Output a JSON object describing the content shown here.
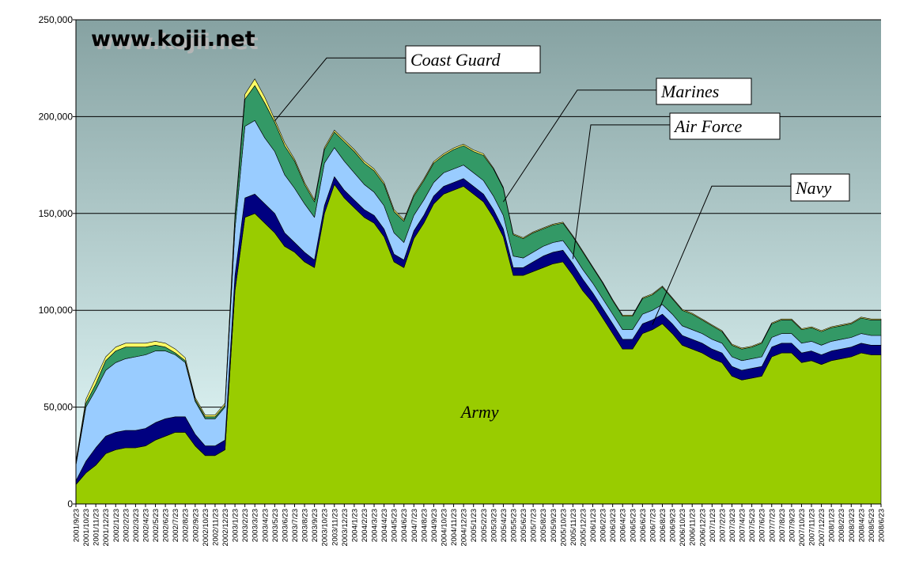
{
  "watermark": "www.kojii.net",
  "chart_data": {
    "type": "area",
    "stacked": true,
    "ylim": [
      0,
      250000
    ],
    "yticks": [
      0,
      50000,
      100000,
      150000,
      200000,
      250000
    ],
    "ytick_labels": [
      "0",
      "50,000",
      "100,000",
      "150,000",
      "200,000",
      "250,000"
    ],
    "grid": "horizontal",
    "x_labels": [
      "2001/9/23",
      "2001/10/23",
      "2001/11/23",
      "2001/12/23",
      "2002/1/23",
      "2002/2/23",
      "2002/3/23",
      "2002/4/23",
      "2002/5/23",
      "2002/6/23",
      "2002/7/23",
      "2002/8/23",
      "2002/9/23",
      "2002/10/23",
      "2002/11/23",
      "2002/12/23",
      "2003/1/23",
      "2003/2/23",
      "2003/3/23",
      "2003/4/23",
      "2003/5/23",
      "2003/6/23",
      "2003/7/23",
      "2003/8/23",
      "2003/9/23",
      "2003/10/23",
      "2003/11/23",
      "2003/12/23",
      "2004/1/23",
      "2004/2/23",
      "2004/3/23",
      "2004/4/23",
      "2004/5/23",
      "2004/6/23",
      "2004/7/23",
      "2004/8/23",
      "2004/9/23",
      "2004/10/23",
      "2004/11/23",
      "2004/12/23",
      "2005/1/23",
      "2005/2/23",
      "2005/3/23",
      "2005/4/23",
      "2005/5/23",
      "2005/6/23",
      "2005/7/23",
      "2005/8/23",
      "2005/9/23",
      "2005/10/23",
      "2005/11/23",
      "2005/12/23",
      "2006/1/23",
      "2006/2/23",
      "2006/3/23",
      "2006/4/23",
      "2006/5/23",
      "2006/6/23",
      "2006/7/23",
      "2006/8/23",
      "2006/9/23",
      "2006/10/23",
      "2006/11/23",
      "2006/12/23",
      "2007/1/23",
      "2007/2/23",
      "2007/3/23",
      "2007/4/23",
      "2007/5/23",
      "2007/6/23",
      "2007/7/23",
      "2007/8/23",
      "2007/9/23",
      "2007/10/23",
      "2007/11/23",
      "2007/12/23",
      "2008/1/23",
      "2008/2/23",
      "2008/3/23",
      "2008/4/23",
      "2008/5/23",
      "2008/6/23"
    ],
    "x": [
      "2001/9/23",
      "2001/10/23",
      "2001/11/23",
      "2001/12/23",
      "2002/1/23",
      "2002/2/23",
      "2002/3/23",
      "2002/4/23",
      "2002/5/23",
      "2002/6/23",
      "2002/7/23",
      "2002/8/23",
      "2002/9/23",
      "2002/10/23",
      "2002/11/23",
      "2002/12/23",
      "2003/1/23",
      "2003/2/23",
      "2003/3/23",
      "2003/4/23",
      "2003/5/23",
      "2003/6/23",
      "2003/7/23",
      "2003/8/23",
      "2003/9/23",
      "2003/10/23",
      "2003/11/23",
      "2003/12/23",
      "2004/1/23",
      "2004/2/23",
      "2004/3/23",
      "2004/4/23",
      "2004/5/23",
      "2004/6/23",
      "2004/7/23",
      "2004/8/23",
      "2004/9/23",
      "2004/10/23",
      "2004/11/23",
      "2004/12/23",
      "2005/1/23",
      "2005/2/23",
      "2005/3/23",
      "2005/4/23",
      "2005/5/23",
      "2005/6/23",
      "2005/7/23",
      "2005/8/23",
      "2005/9/23",
      "2005/10/23",
      "2005/11/23",
      "2005/12/23",
      "2006/1/23",
      "2006/2/23",
      "2006/3/23",
      "2006/4/23",
      "2006/5/23",
      "2006/6/23",
      "2006/7/23",
      "2006/8/23",
      "2006/9/23",
      "2006/10/23",
      "2006/11/23",
      "2006/12/23",
      "2007/1/23",
      "2007/2/23",
      "2007/3/23",
      "2007/4/23",
      "2007/5/23",
      "2007/6/23",
      "2007/7/23",
      "2007/8/23",
      "2007/9/23",
      "2007/10/23",
      "2007/11/23",
      "2007/12/23",
      "2008/1/23",
      "2008/2/23",
      "2008/3/23",
      "2008/4/23",
      "2008/5/23",
      "2008/6/23"
    ],
    "series": [
      {
        "name": "Army",
        "color": "#99cc00",
        "values": [
          10000,
          16000,
          20000,
          26000,
          28000,
          29000,
          29000,
          30000,
          33000,
          35000,
          37000,
          37000,
          30000,
          25000,
          25000,
          28000,
          110000,
          148000,
          150000,
          145000,
          140000,
          133000,
          130000,
          125000,
          122000,
          150000,
          165000,
          158000,
          153000,
          148000,
          145000,
          138000,
          125000,
          122000,
          137000,
          145000,
          155000,
          160000,
          162000,
          164000,
          160000,
          156000,
          148000,
          138000,
          118000,
          118000,
          120000,
          122000,
          124000,
          125000,
          118000,
          110000,
          104000,
          96000,
          88000,
          80000,
          80000,
          88000,
          90000,
          93000,
          88000,
          82000,
          80000,
          78000,
          75000,
          73000,
          66000,
          64000,
          65000,
          66000,
          76000,
          78000,
          78000,
          73000,
          74000,
          72000,
          74000,
          75000,
          76000,
          78000,
          77000,
          77000
        ]
      },
      {
        "name": "Navy",
        "color": "#000080",
        "values": [
          2000,
          6000,
          9000,
          9000,
          9000,
          9000,
          9000,
          9000,
          9000,
          9000,
          8000,
          8000,
          6000,
          5000,
          5000,
          5000,
          8000,
          10000,
          10000,
          10000,
          10000,
          7000,
          5000,
          5000,
          4000,
          4000,
          4000,
          4000,
          4000,
          4000,
          4000,
          4000,
          4000,
          4000,
          4000,
          4000,
          4000,
          4000,
          4000,
          4000,
          4000,
          4000,
          4000,
          4000,
          4000,
          4000,
          5000,
          6000,
          6000,
          6000,
          6000,
          6000,
          5000,
          5000,
          5000,
          5000,
          5000,
          5000,
          5000,
          5000,
          5000,
          5000,
          5000,
          5000,
          5000,
          5000,
          5000,
          5000,
          5000,
          5000,
          5000,
          5000,
          5000,
          5000,
          5000,
          5000,
          5000,
          5000,
          5000,
          5000,
          5000,
          5000
        ]
      },
      {
        "name": "Air Force",
        "color": "#99ccff",
        "values": [
          8000,
          28000,
          30000,
          34000,
          36000,
          37000,
          38000,
          38000,
          37000,
          35000,
          32000,
          28000,
          17000,
          14000,
          14000,
          17000,
          24000,
          37000,
          38000,
          34000,
          32000,
          30000,
          28000,
          25000,
          22000,
          22000,
          15000,
          15000,
          14000,
          13000,
          12000,
          12000,
          11000,
          9000,
          8000,
          8000,
          7000,
          7000,
          7000,
          7000,
          7000,
          7000,
          7000,
          7000,
          6000,
          5000,
          5000,
          5000,
          5000,
          5000,
          5000,
          5000,
          5000,
          5000,
          5000,
          5000,
          5000,
          5000,
          5000,
          5000,
          5000,
          5000,
          5000,
          5000,
          5000,
          5000,
          5000,
          5000,
          5000,
          5000,
          5000,
          5000,
          5000,
          5000,
          5000,
          5000,
          5000,
          5000,
          5000,
          5000,
          5000,
          5000
        ]
      },
      {
        "name": "Marines",
        "color": "#339966",
        "values": [
          1000,
          2000,
          3000,
          5000,
          6000,
          6000,
          5000,
          4000,
          3000,
          2000,
          1000,
          1000,
          1000,
          1000,
          1000,
          1000,
          6000,
          14000,
          18000,
          18000,
          15000,
          15000,
          14000,
          10000,
          8000,
          7000,
          8000,
          10000,
          11000,
          11000,
          11000,
          11000,
          11000,
          11000,
          10000,
          10000,
          10000,
          9000,
          10000,
          10000,
          11000,
          13000,
          14000,
          14000,
          11000,
          10000,
          10000,
          9000,
          9000,
          9000,
          9000,
          9000,
          8000,
          8000,
          7000,
          7000,
          7000,
          8000,
          8000,
          9000,
          8000,
          8000,
          8000,
          7000,
          7000,
          6000,
          6000,
          6000,
          6000,
          7000,
          7000,
          7000,
          7000,
          7000,
          7000,
          7000,
          7000,
          7000,
          7000,
          8000,
          8000,
          8000
        ]
      },
      {
        "name": "Coast Guard",
        "color": "#ffff66",
        "values": [
          1000,
          2000,
          3000,
          2000,
          2000,
          2000,
          2000,
          2000,
          2000,
          2000,
          2000,
          1500,
          1000,
          1000,
          1000,
          1000,
          1500,
          2500,
          3500,
          3000,
          1500,
          1500,
          1000,
          1000,
          1000,
          1000,
          1000,
          1000,
          1000,
          1000,
          1000,
          1000,
          1000,
          800,
          800,
          800,
          800,
          800,
          800,
          800,
          800,
          800,
          500,
          500,
          500,
          500,
          500,
          500,
          500,
          500,
          500,
          500,
          500,
          500,
          500,
          500,
          500,
          500,
          500,
          500,
          500,
          500,
          500,
          500,
          500,
          500,
          500,
          500,
          500,
          500,
          500,
          500,
          500,
          500,
          500,
          500,
          500,
          500,
          500,
          500,
          500,
          500
        ]
      }
    ],
    "annotations": [
      {
        "text": "Coast Guard",
        "target_series": "Coast Guard",
        "target_x": "2003/5/23"
      },
      {
        "text": "Marines",
        "target_series": "Marines",
        "target_x": "2005/4/23"
      },
      {
        "text": "Air Force",
        "target_series": "Air Force",
        "target_x": "2005/11/23"
      },
      {
        "text": "Navy",
        "target_series": "Navy",
        "target_x": "2006/7/23"
      },
      {
        "text": "Army",
        "target_series": "Army",
        "target_x": "2005/1/23"
      }
    ]
  }
}
